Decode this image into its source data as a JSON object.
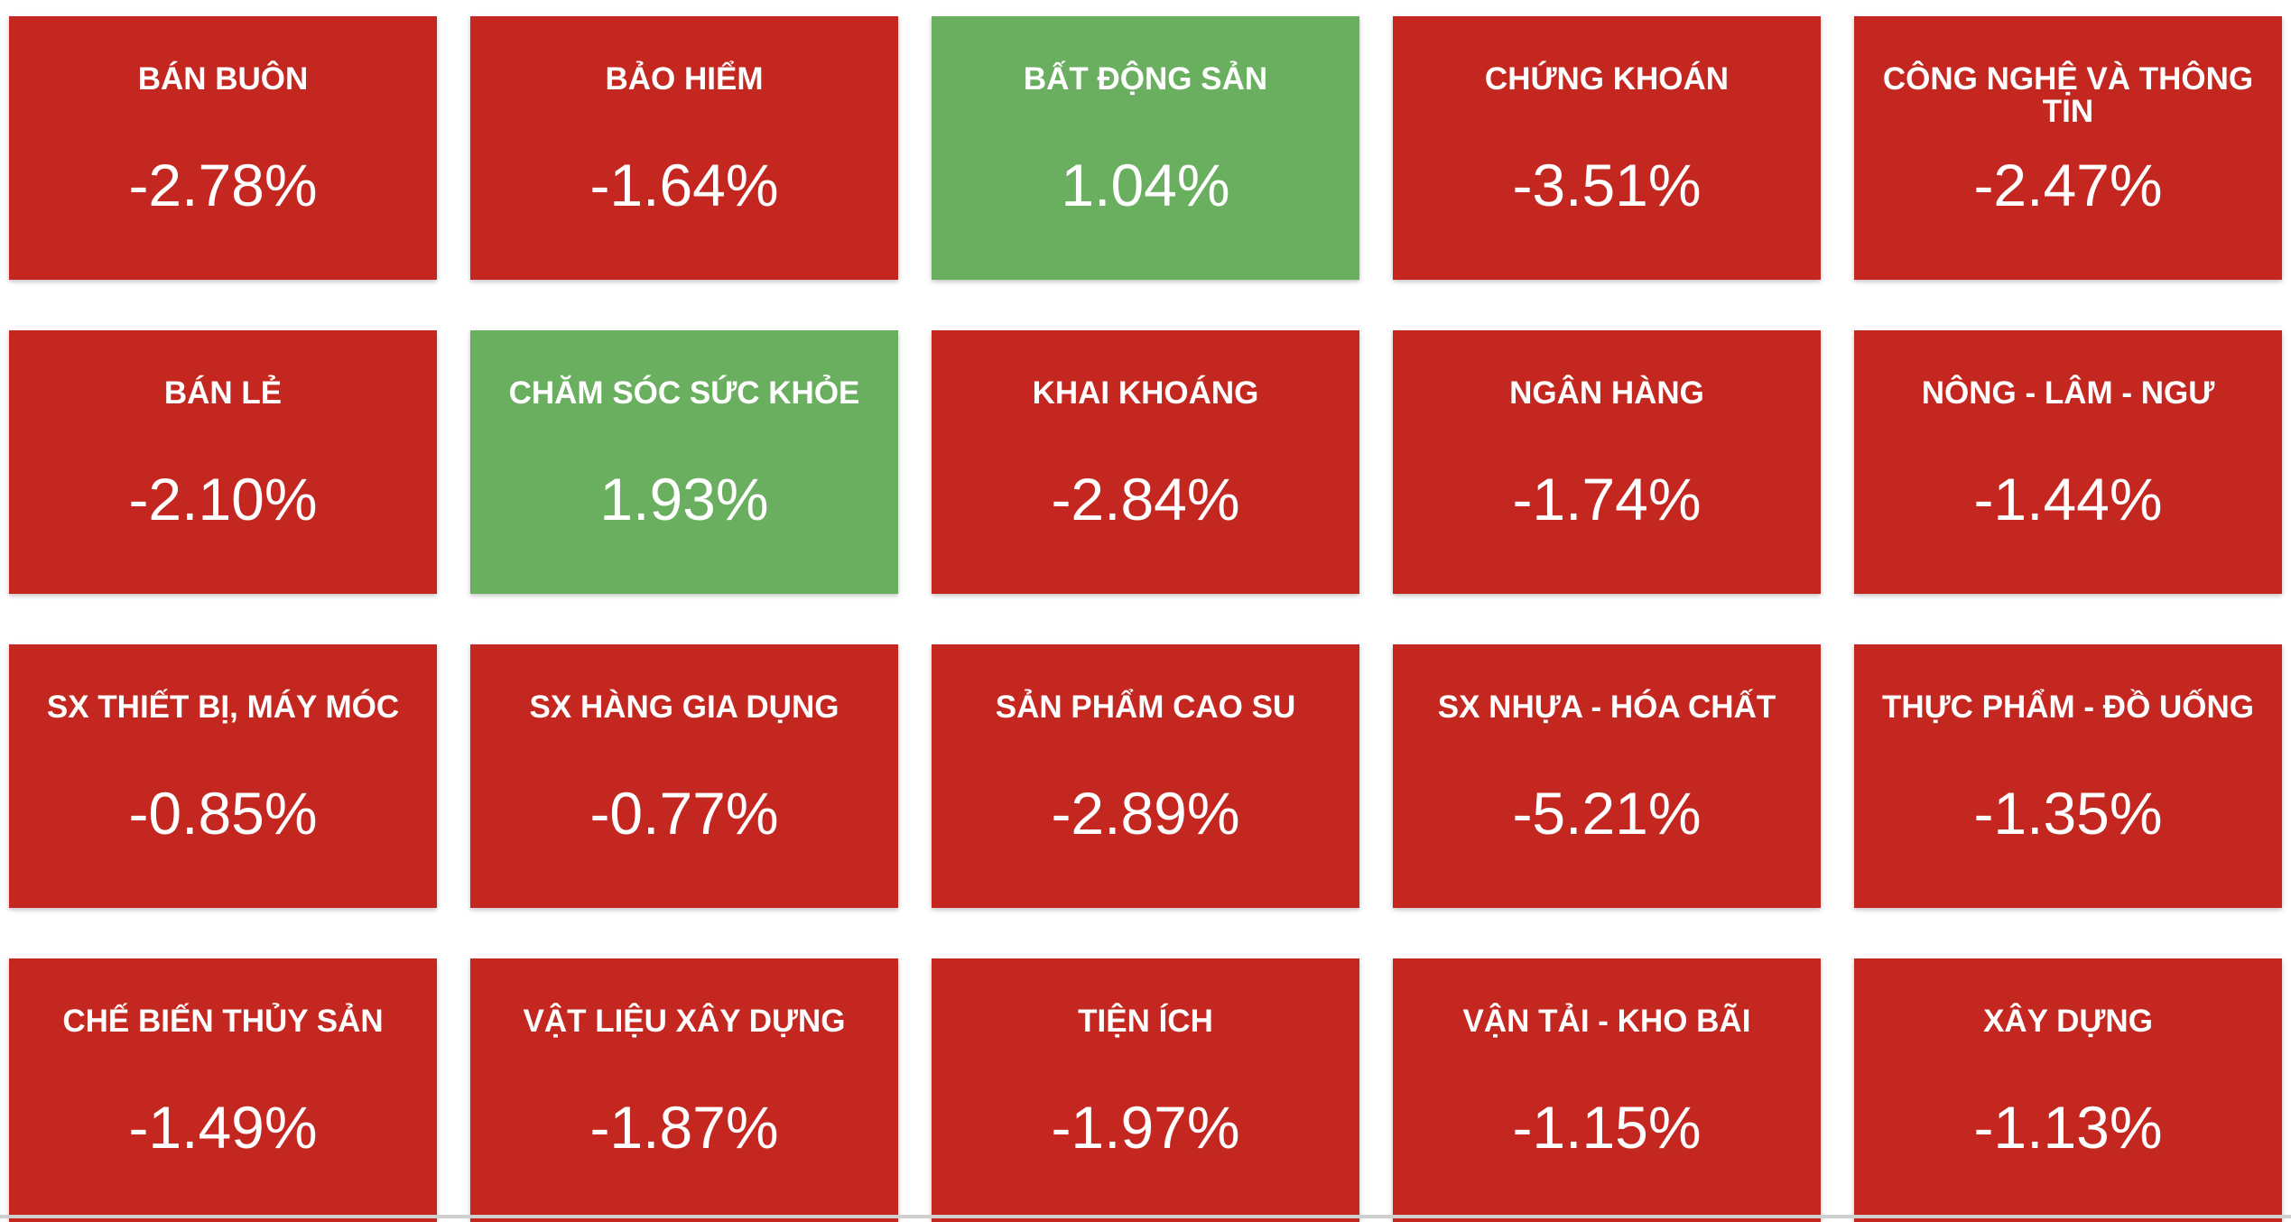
{
  "chart_data": {
    "type": "heatmap",
    "title": "",
    "colors": {
      "negative": "#c4271f",
      "positive": "#6aaf5f"
    },
    "columns": 5,
    "cells": [
      {
        "label": "BÁN BUÔN",
        "value": -2.78,
        "display": "-2.78%"
      },
      {
        "label": "BẢO HIỂM",
        "value": -1.64,
        "display": "-1.64%"
      },
      {
        "label": "BẤT ĐỘNG SẢN",
        "value": 1.04,
        "display": "1.04%"
      },
      {
        "label": "CHỨNG KHOÁN",
        "value": -3.51,
        "display": "-3.51%"
      },
      {
        "label": "CÔNG NGHỆ VÀ THÔNG TIN",
        "value": -2.47,
        "display": "-2.47%"
      },
      {
        "label": "BÁN LẺ",
        "value": -2.1,
        "display": "-2.10%"
      },
      {
        "label": "CHĂM SÓC SỨC KHỎE",
        "value": 1.93,
        "display": "1.93%"
      },
      {
        "label": "KHAI KHOÁNG",
        "value": -2.84,
        "display": "-2.84%"
      },
      {
        "label": "NGÂN HÀNG",
        "value": -1.74,
        "display": "-1.74%"
      },
      {
        "label": "NÔNG - LÂM - NGƯ",
        "value": -1.44,
        "display": "-1.44%"
      },
      {
        "label": "SX THIẾT BỊ, MÁY MÓC",
        "value": -0.85,
        "display": "-0.85%"
      },
      {
        "label": "SX HÀNG GIA DỤNG",
        "value": -0.77,
        "display": "-0.77%"
      },
      {
        "label": "SẢN PHẨM CAO SU",
        "value": -2.89,
        "display": "-2.89%"
      },
      {
        "label": "SX NHỰA - HÓA CHẤT",
        "value": -5.21,
        "display": "-5.21%"
      },
      {
        "label": "THỰC PHẨM - ĐỒ UỐNG",
        "value": -1.35,
        "display": "-1.35%"
      },
      {
        "label": "CHẾ BIẾN THỦY SẢN",
        "value": -1.49,
        "display": "-1.49%"
      },
      {
        "label": "VẬT LIỆU XÂY DỰNG",
        "value": -1.87,
        "display": "-1.87%"
      },
      {
        "label": "TIỆN ÍCH",
        "value": -1.97,
        "display": "-1.97%"
      },
      {
        "label": "VẬN TẢI - KHO BÃI",
        "value": -1.15,
        "display": "-1.15%"
      },
      {
        "label": "XÂY DỰNG",
        "value": -1.13,
        "display": "-1.13%"
      }
    ]
  }
}
